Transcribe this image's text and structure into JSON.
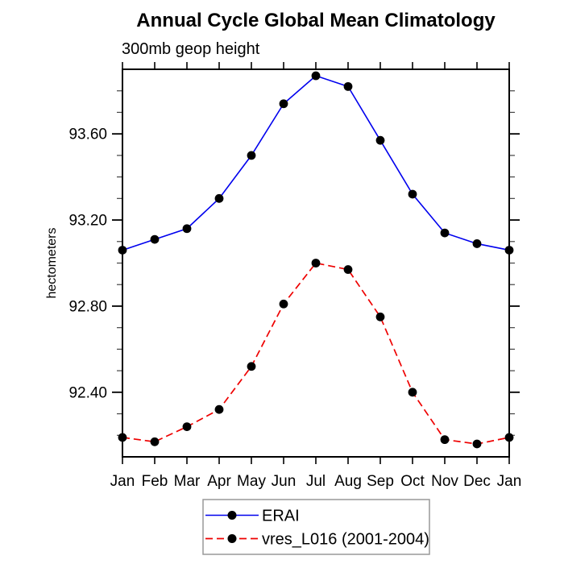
{
  "chart_data": {
    "type": "line",
    "title": "Annual Cycle Global Mean Climatology",
    "subtitle": "300mb geop height",
    "ylabel": "hectometers",
    "categories": [
      "Jan",
      "Feb",
      "Mar",
      "Apr",
      "May",
      "Jun",
      "Jul",
      "Aug",
      "Sep",
      "Oct",
      "Nov",
      "Dec",
      "Jan"
    ],
    "ylim": [
      92.1,
      93.9
    ],
    "yticks_major": [
      92.4,
      92.8,
      93.2,
      93.6
    ],
    "ytick_minor_step": 0.1,
    "ytick_minor_range": [
      92.2,
      93.8
    ],
    "grid": false,
    "legend_position": "bottom-center",
    "series": [
      {
        "name": "ERAI",
        "line_color": "#0000ee",
        "line_style": "solid",
        "marker": "filled-circle",
        "marker_color": "#000000",
        "values": [
          93.06,
          93.11,
          93.16,
          93.3,
          93.5,
          93.74,
          93.87,
          93.82,
          93.57,
          93.32,
          93.14,
          93.09,
          93.06
        ]
      },
      {
        "name": "vres_L016 (2001-2004)",
        "line_color": "#ee0000",
        "line_style": "dashed",
        "marker": "filled-circle",
        "marker_color": "#000000",
        "values": [
          92.19,
          92.17,
          92.24,
          92.32,
          92.52,
          92.81,
          93.0,
          92.97,
          92.75,
          92.4,
          92.18,
          92.16,
          92.19
        ]
      }
    ],
    "frame_color": "#000000",
    "minor_tick_color": "#444444",
    "legend_border_color": "#999999"
  }
}
